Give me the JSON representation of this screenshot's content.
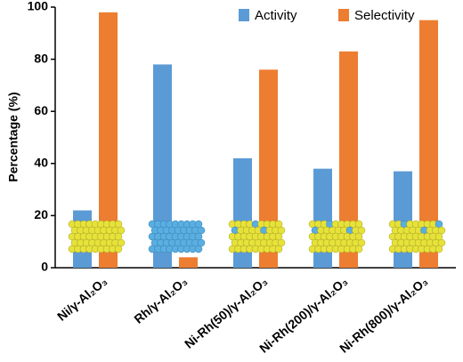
{
  "chart_data": {
    "type": "bar",
    "y_label": "Percentage (%)",
    "categories": [
      "Ni/γ-Al₂O₃",
      "Rh/γ-Al₂O₃",
      "Ni-Rh(50)/γ-Al₂O₃",
      "Ni-Rh(200)/γ-Al₂O₃",
      "Ni-Rh(800)/γ-Al₂O₃"
    ],
    "series": [
      {
        "name": "Activity",
        "color": "#5b9bd5",
        "values": [
          22,
          78,
          42,
          38,
          37
        ]
      },
      {
        "name": "Selectivity",
        "color": "#ed7d31",
        "values": [
          98,
          4,
          76,
          83,
          95
        ]
      }
    ],
    "ylim": [
      0,
      100
    ],
    "yticks": [
      0,
      20,
      40,
      60,
      80,
      100
    ],
    "grid": false,
    "legend": "top"
  }
}
